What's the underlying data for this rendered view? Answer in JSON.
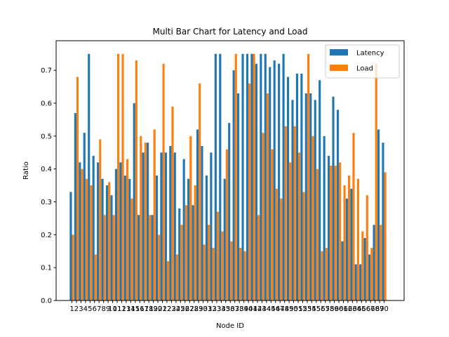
{
  "chart_data": {
    "type": "bar",
    "title": "Multi Bar Chart for Latency and Load",
    "xlabel": "Node ID",
    "ylabel": "Ratio",
    "ylim": [
      0,
      0.79
    ],
    "yticks": [
      0.0,
      0.1,
      0.2,
      0.3,
      0.4,
      0.5,
      0.6,
      0.7
    ],
    "ytick_labels": [
      "0.0",
      "0.1",
      "0.2",
      "0.3",
      "0.4",
      "0.5",
      "0.6",
      "0.7"
    ],
    "legend_position": "top-right",
    "categories": [
      1,
      2,
      3,
      4,
      5,
      6,
      7,
      8,
      9,
      10,
      11,
      12,
      13,
      14,
      15,
      16,
      17,
      18,
      19,
      20,
      21,
      22,
      23,
      24,
      25,
      26,
      27,
      28,
      29,
      30,
      31,
      32,
      33,
      34,
      35,
      36,
      37,
      38,
      39,
      40,
      41,
      42,
      43,
      44,
      45,
      46,
      47,
      48,
      49,
      50,
      51,
      52,
      53,
      54,
      55,
      56,
      57,
      58,
      59,
      60,
      61,
      62,
      63,
      64,
      65,
      66,
      67,
      68,
      69,
      70
    ],
    "series": [
      {
        "name": "Latency",
        "color": "#1f77b4",
        "values": [
          0.33,
          0.57,
          0.42,
          0.51,
          0.75,
          0.44,
          0.42,
          0.37,
          0.35,
          0.32,
          0.4,
          0.42,
          0.38,
          0.37,
          0.6,
          0.26,
          0.45,
          0.48,
          0.26,
          0.38,
          0.45,
          0.45,
          0.47,
          0.45,
          0.28,
          0.43,
          0.37,
          0.29,
          0.52,
          0.47,
          0.38,
          0.45,
          0.75,
          0.75,
          0.37,
          0.54,
          0.7,
          0.63,
          0.75,
          0.75,
          0.75,
          0.72,
          0.75,
          0.75,
          0.71,
          0.73,
          0.72,
          0.75,
          0.68,
          0.61,
          0.69,
          0.69,
          0.63,
          0.63,
          0.61,
          0.67,
          0.5,
          0.44,
          0.62,
          0.58,
          0.18,
          0.31,
          0.34,
          0.11,
          0.11,
          0.19,
          0.14,
          0.23,
          0.52,
          0.48
        ]
      },
      {
        "name": "Load",
        "color": "#ff7f0e",
        "values": [
          0.2,
          0.68,
          0.4,
          0.37,
          0.35,
          0.14,
          0.49,
          0.26,
          0.36,
          0.26,
          0.75,
          0.75,
          0.43,
          0.31,
          0.73,
          0.5,
          0.48,
          0.26,
          0.52,
          0.2,
          0.72,
          0.12,
          0.59,
          0.14,
          0.23,
          0.29,
          0.5,
          0.35,
          0.66,
          0.17,
          0.23,
          0.16,
          0.27,
          0.21,
          0.46,
          0.18,
          0.75,
          0.16,
          0.15,
          0.66,
          0.75,
          0.26,
          0.51,
          0.63,
          0.46,
          0.34,
          0.31,
          0.53,
          0.42,
          0.53,
          0.45,
          0.33,
          0.75,
          0.5,
          0.4,
          0.15,
          0.16,
          0.41,
          0.41,
          0.42,
          0.35,
          0.38,
          0.51,
          0.37,
          0.21,
          0.32,
          0.16,
          0.72,
          0.23,
          0.39
        ]
      }
    ]
  }
}
